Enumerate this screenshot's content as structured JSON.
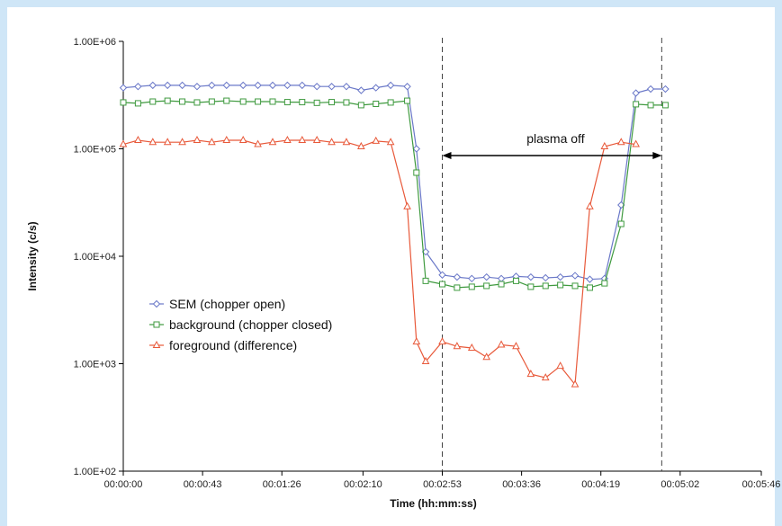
{
  "chart_data": {
    "type": "line",
    "title": "",
    "xlabel": "Time  (hh:mm:ss)",
    "ylabel": "Intensity (c/s)",
    "yscale": "log",
    "ylim": [
      100,
      1000000
    ],
    "xlim": [
      "00:00:00",
      "00:05:46"
    ],
    "x_tick_labels": [
      "00:00:00",
      "00:00:43",
      "00:01:26",
      "00:02:10",
      "00:02:53",
      "00:03:36",
      "00:04:19",
      "00:05:02",
      "00:05:46"
    ],
    "y_tick_labels": [
      "1.00E+02",
      "1.00E+03",
      "1.00E+04",
      "1.00E+05",
      "1.00E+06"
    ],
    "grid": false,
    "legend_position": "left",
    "annotations": {
      "label": "plasma off",
      "start": "00:02:53",
      "end": "00:04:52"
    },
    "series": [
      {
        "name": "SEM (chopper open)",
        "color": "#6a78c8",
        "marker": "diamond",
        "points": [
          [
            "00:00:00",
            370000
          ],
          [
            "00:00:08",
            380000
          ],
          [
            "00:00:16",
            390000
          ],
          [
            "00:00:24",
            390000
          ],
          [
            "00:00:32",
            390000
          ],
          [
            "00:00:40",
            380000
          ],
          [
            "00:00:48",
            390000
          ],
          [
            "00:00:56",
            390000
          ],
          [
            "00:01:05",
            390000
          ],
          [
            "00:01:13",
            390000
          ],
          [
            "00:01:21",
            390000
          ],
          [
            "00:01:29",
            390000
          ],
          [
            "00:01:37",
            390000
          ],
          [
            "00:01:45",
            380000
          ],
          [
            "00:01:53",
            380000
          ],
          [
            "00:02:01",
            380000
          ],
          [
            "00:02:09",
            350000
          ],
          [
            "00:02:17",
            370000
          ],
          [
            "00:02:25",
            390000
          ],
          [
            "00:02:34",
            380000
          ],
          [
            "00:02:39",
            100000
          ],
          [
            "00:02:44",
            11000
          ],
          [
            "00:02:53",
            6700
          ],
          [
            "00:03:01",
            6400
          ],
          [
            "00:03:09",
            6200
          ],
          [
            "00:03:17",
            6400
          ],
          [
            "00:03:25",
            6200
          ],
          [
            "00:03:33",
            6500
          ],
          [
            "00:03:41",
            6400
          ],
          [
            "00:03:49",
            6300
          ],
          [
            "00:03:57",
            6400
          ],
          [
            "00:04:05",
            6600
          ],
          [
            "00:04:13",
            6100
          ],
          [
            "00:04:21",
            6200
          ],
          [
            "00:04:30",
            30000
          ],
          [
            "00:04:38",
            330000
          ],
          [
            "00:04:46",
            360000
          ],
          [
            "00:04:54",
            360000
          ]
        ]
      },
      {
        "name": "background (chopper closed)",
        "color": "#3f9a3f",
        "marker": "square",
        "points": [
          [
            "00:00:00",
            270000
          ],
          [
            "00:00:08",
            265000
          ],
          [
            "00:00:16",
            275000
          ],
          [
            "00:00:24",
            280000
          ],
          [
            "00:00:32",
            275000
          ],
          [
            "00:00:40",
            270000
          ],
          [
            "00:00:48",
            275000
          ],
          [
            "00:00:56",
            280000
          ],
          [
            "00:01:05",
            275000
          ],
          [
            "00:01:13",
            275000
          ],
          [
            "00:01:21",
            275000
          ],
          [
            "00:01:29",
            272000
          ],
          [
            "00:01:37",
            272000
          ],
          [
            "00:01:45",
            268000
          ],
          [
            "00:01:53",
            272000
          ],
          [
            "00:02:01",
            270000
          ],
          [
            "00:02:09",
            255000
          ],
          [
            "00:02:17",
            262000
          ],
          [
            "00:02:25",
            270000
          ],
          [
            "00:02:34",
            280000
          ],
          [
            "00:02:39",
            60000
          ],
          [
            "00:02:44",
            5900
          ],
          [
            "00:02:53",
            5500
          ],
          [
            "00:03:01",
            5100
          ],
          [
            "00:03:09",
            5200
          ],
          [
            "00:03:17",
            5300
          ],
          [
            "00:03:25",
            5500
          ],
          [
            "00:03:33",
            5900
          ],
          [
            "00:03:41",
            5200
          ],
          [
            "00:03:49",
            5300
          ],
          [
            "00:03:57",
            5400
          ],
          [
            "00:04:05",
            5300
          ],
          [
            "00:04:13",
            5100
          ],
          [
            "00:04:21",
            5600
          ],
          [
            "00:04:30",
            20000
          ],
          [
            "00:04:38",
            260000
          ],
          [
            "00:04:46",
            255000
          ],
          [
            "00:04:54",
            255000
          ]
        ]
      },
      {
        "name": "foreground (difference)",
        "color": "#e8593a",
        "marker": "triangle",
        "points": [
          [
            "00:00:00",
            110000
          ],
          [
            "00:00:08",
            120000
          ],
          [
            "00:00:16",
            115000
          ],
          [
            "00:00:24",
            115000
          ],
          [
            "00:00:32",
            115000
          ],
          [
            "00:00:40",
            120000
          ],
          [
            "00:00:48",
            115000
          ],
          [
            "00:00:56",
            120000
          ],
          [
            "00:01:05",
            120000
          ],
          [
            "00:01:13",
            110000
          ],
          [
            "00:01:21",
            115000
          ],
          [
            "00:01:29",
            120000
          ],
          [
            "00:01:37",
            120000
          ],
          [
            "00:01:45",
            120000
          ],
          [
            "00:01:53",
            115000
          ],
          [
            "00:02:01",
            115000
          ],
          [
            "00:02:09",
            105000
          ],
          [
            "00:02:17",
            118000
          ],
          [
            "00:02:25",
            115000
          ],
          [
            "00:02:34",
            29000
          ],
          [
            "00:02:39",
            1600
          ],
          [
            "00:02:44",
            1050
          ],
          [
            "00:02:53",
            1600
          ],
          [
            "00:03:01",
            1450
          ],
          [
            "00:03:09",
            1400
          ],
          [
            "00:03:17",
            1150
          ],
          [
            "00:03:25",
            1500
          ],
          [
            "00:03:33",
            1450
          ],
          [
            "00:03:41",
            800
          ],
          [
            "00:03:49",
            740
          ],
          [
            "00:03:57",
            950
          ],
          [
            "00:04:05",
            640
          ],
          [
            "00:04:13",
            29000
          ],
          [
            "00:04:21",
            105000
          ],
          [
            "00:04:30",
            115000
          ],
          [
            "00:04:38",
            110000
          ]
        ]
      }
    ]
  }
}
